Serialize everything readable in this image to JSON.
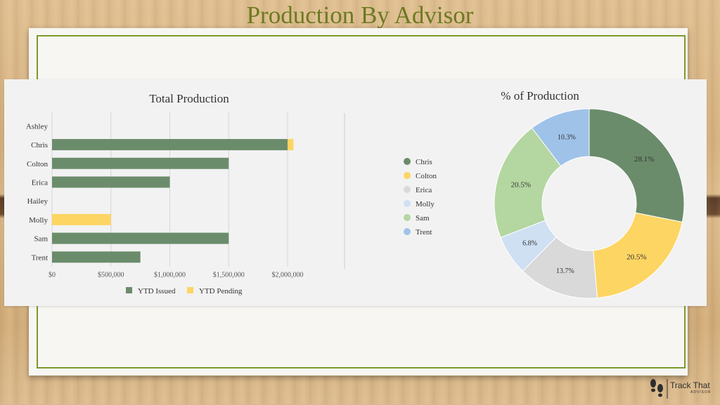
{
  "slide": {
    "title": "Production By Advisor",
    "logo_text": "Track That",
    "logo_sub": "ADVISOR"
  },
  "colors": {
    "issued": "#6b8c6b",
    "pending": "#fdd563",
    "frame": "#7d9a2c"
  },
  "chart_data": [
    {
      "type": "bar",
      "orientation": "horizontal",
      "stacked": true,
      "title": "Total Production",
      "categories": [
        "Ashley",
        "Chris",
        "Colton",
        "Erica",
        "Hailey",
        "Molly",
        "Sam",
        "Trent"
      ],
      "series": [
        {
          "name": "YTD Issued",
          "color": "#6b8c6b",
          "values": [
            0,
            2000000,
            1500000,
            1000000,
            0,
            0,
            1500000,
            750000
          ]
        },
        {
          "name": "YTD Pending",
          "color": "#fdd563",
          "values": [
            0,
            50000,
            0,
            0,
            0,
            500000,
            0,
            0
          ]
        }
      ],
      "xlim": [
        0,
        2000000
      ],
      "xticks": [
        "$0",
        "$500,000",
        "$1,000,000",
        "$1,500,000",
        "$2,000,000"
      ],
      "grid": true,
      "legend": "bottom"
    },
    {
      "type": "pie",
      "donut": true,
      "title": "% of Production",
      "slices": [
        {
          "label": "Chris",
          "value": 28.1,
          "display": "28.1%",
          "color": "#6b8c6b"
        },
        {
          "label": "Colton",
          "value": 20.5,
          "display": "20.5%",
          "color": "#fdd563"
        },
        {
          "label": "Erica",
          "value": 13.7,
          "display": "13.7%",
          "color": "#d9d9d9"
        },
        {
          "label": "Molly",
          "value": 6.8,
          "display": "6.8%",
          "color": "#cfe0f3"
        },
        {
          "label": "Sam",
          "value": 20.5,
          "display": "20.5%",
          "color": "#b4d6a0"
        },
        {
          "label": "Trent",
          "value": 10.3,
          "display": "10.3%",
          "color": "#9fc2e8"
        }
      ],
      "legend": "left"
    }
  ]
}
